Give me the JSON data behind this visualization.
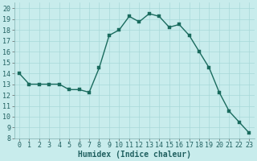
{
  "x": [
    0,
    1,
    2,
    3,
    4,
    5,
    6,
    7,
    8,
    9,
    10,
    11,
    12,
    13,
    14,
    15,
    16,
    17,
    18,
    19,
    20,
    21,
    22,
    23
  ],
  "y": [
    14,
    13,
    13,
    13,
    13,
    12.5,
    12.5,
    12.25,
    14.5,
    17.5,
    18,
    19.25,
    18.75,
    19.5,
    19.25,
    18.25,
    18.5,
    17.5,
    16,
    14.5,
    12.25,
    10.5,
    9.5,
    8.5
  ],
  "line_color": "#1a6b5e",
  "marker_color": "#1a6b5e",
  "bg_color": "#c8ecec",
  "grid_color": "#a8d8d8",
  "xlabel": "Humidex (Indice chaleur)",
  "xlim": [
    -0.5,
    23.5
  ],
  "ylim": [
    8,
    20.5
  ],
  "xticks": [
    0,
    1,
    2,
    3,
    4,
    5,
    6,
    7,
    8,
    9,
    10,
    11,
    12,
    13,
    14,
    15,
    16,
    17,
    18,
    19,
    20,
    21,
    22,
    23
  ],
  "yticks": [
    8,
    9,
    10,
    11,
    12,
    13,
    14,
    15,
    16,
    17,
    18,
    19,
    20
  ],
  "xlabel_fontsize": 7,
  "tick_fontsize": 6,
  "marker_size": 2.5,
  "line_width": 1.0
}
